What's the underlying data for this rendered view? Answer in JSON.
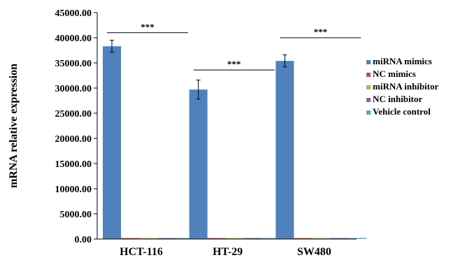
{
  "chart_data": {
    "type": "bar",
    "title": "",
    "xlabel": "",
    "ylabel": "mRNA relative expression",
    "ylim": [
      0,
      45000
    ],
    "yticks": [
      "0.00",
      "5000.00",
      "10000.00",
      "15000.00",
      "20000.00",
      "25000.00",
      "30000.00",
      "35000.00",
      "40000.00",
      "45000.00"
    ],
    "categories": [
      "HCT-116",
      "HT-29",
      "SW480"
    ],
    "legend_position": "right",
    "grid": false,
    "series": [
      {
        "name": "miRNA mimics",
        "color": "#4f81bd",
        "values": [
          38300,
          29700,
          35400
        ],
        "errors": [
          1200,
          1900,
          1200
        ]
      },
      {
        "name": "NC mimics",
        "color": "#c0504d",
        "values": [
          20,
          20,
          20
        ],
        "errors": [
          0,
          0,
          0
        ]
      },
      {
        "name": "miRNA inhibitor",
        "color": "#9bbb59",
        "values": [
          20,
          20,
          20
        ],
        "errors": [
          0,
          0,
          0
        ]
      },
      {
        "name": "NC inhibitor",
        "color": "#8064a2",
        "values": [
          20,
          20,
          20
        ],
        "errors": [
          0,
          0,
          0
        ]
      },
      {
        "name": "Vehicle control",
        "color": "#4bacc6",
        "values": [
          20,
          20,
          20
        ],
        "errors": [
          0,
          0,
          0
        ]
      }
    ],
    "annotations": [
      {
        "category": "HCT-116",
        "text": "***",
        "y": 41000
      },
      {
        "category": "HT-29",
        "text": "***",
        "y": 33600
      },
      {
        "category": "SW480",
        "text": "***",
        "y": 40000
      }
    ]
  }
}
